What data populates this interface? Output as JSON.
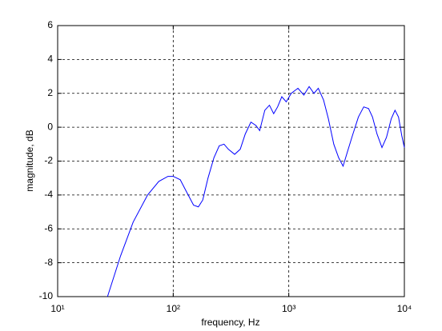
{
  "chart_data": {
    "type": "line",
    "xlabel": "frequency, Hz",
    "ylabel": "magnitude, dB",
    "x": [
      27,
      35,
      45,
      60,
      75,
      90,
      100,
      115,
      130,
      150,
      165,
      180,
      200,
      225,
      250,
      275,
      300,
      340,
      380,
      420,
      470,
      520,
      560,
      620,
      680,
      740,
      800,
      870,
      950,
      1050,
      1200,
      1350,
      1500,
      1650,
      1800,
      2000,
      2200,
      2450,
      2700,
      2950,
      3200,
      3550,
      4000,
      4450,
      4900,
      5300,
      5800,
      6400,
      7000,
      7700,
      8300,
      8900,
      9500,
      10000
    ],
    "values": [
      -10,
      -7.6,
      -5.6,
      -4.0,
      -3.2,
      -2.9,
      -2.9,
      -3.1,
      -3.8,
      -4.6,
      -4.7,
      -4.3,
      -3.0,
      -1.8,
      -1.1,
      -1.0,
      -1.3,
      -1.6,
      -1.3,
      -0.4,
      0.3,
      0.1,
      -0.2,
      1.0,
      1.3,
      0.8,
      1.2,
      1.8,
      1.5,
      2.0,
      2.3,
      1.9,
      2.4,
      2.0,
      2.3,
      1.6,
      0.5,
      -1.0,
      -1.8,
      -2.3,
      -1.5,
      -0.5,
      0.6,
      1.2,
      1.1,
      0.6,
      -0.4,
      -1.2,
      -0.6,
      0.5,
      1.0,
      0.6,
      -0.5,
      -1.2
    ],
    "color": "#0000ff",
    "xscale": "log",
    "xlim": [
      10,
      10000
    ],
    "xticks": [
      {
        "value": 10,
        "label": "10¹"
      },
      {
        "value": 100,
        "label": "10²"
      },
      {
        "value": 1000,
        "label": "10³"
      },
      {
        "value": 10000,
        "label": "10⁴"
      }
    ],
    "ylim": [
      -10,
      6
    ],
    "yticks": [
      -10,
      -8,
      -6,
      -4,
      -2,
      0,
      2,
      4,
      6
    ],
    "grid": true
  }
}
